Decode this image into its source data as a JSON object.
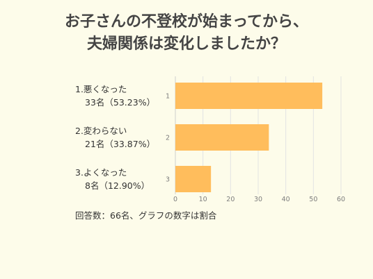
{
  "title": {
    "line1": "お子さんの不登校が始まってから、",
    "line2": "夫婦関係は変化しましたか？"
  },
  "chart_data": {
    "type": "bar",
    "orientation": "horizontal",
    "categories": [
      "1",
      "2",
      "3"
    ],
    "category_labels": [
      {
        "line1": "1.悪くなった",
        "line2": "33名（53.23%）"
      },
      {
        "line1": "2.変わらない",
        "line2": "21名（33.87%）"
      },
      {
        "line1": "3.よくなった",
        "line2": "8名（12.90%）"
      }
    ],
    "values": [
      53.23,
      33.87,
      12.9
    ],
    "xlim": [
      0,
      60
    ],
    "xticks": [
      0,
      10,
      20,
      30,
      40,
      50,
      60
    ],
    "grid": true,
    "bar_color": "#ffbd5c"
  },
  "footnote": "回答数：66名、グラフの数字は割合"
}
